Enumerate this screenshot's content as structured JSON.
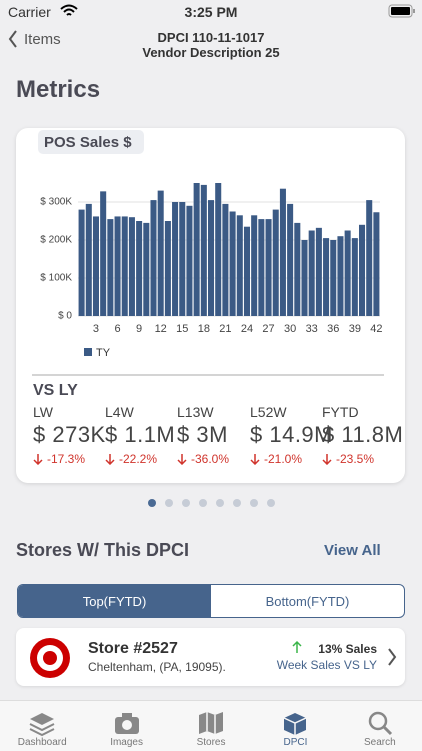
{
  "status": {
    "carrier": "Carrier",
    "time": "3:25 PM"
  },
  "nav": {
    "back": "Items",
    "title": "DPCI 110-11-1017",
    "subtitle": "Vendor Description 25"
  },
  "heading": "Metrics",
  "chart_data": {
    "type": "bar",
    "title": "POS Sales $",
    "x": [
      1,
      2,
      3,
      4,
      5,
      6,
      7,
      8,
      9,
      10,
      11,
      12,
      13,
      14,
      15,
      16,
      17,
      18,
      19,
      20,
      21,
      22,
      23,
      24,
      25,
      26,
      27,
      28,
      29,
      30,
      31,
      32,
      33,
      34,
      35,
      36,
      37,
      38,
      39,
      40,
      41,
      42
    ],
    "series": [
      {
        "name": "TY",
        "color": "#3b5a85",
        "values": [
          280000,
          295000,
          262000,
          328000,
          255000,
          262000,
          262000,
          260000,
          250000,
          245000,
          305000,
          330000,
          250000,
          300000,
          300000,
          290000,
          350000,
          345000,
          305000,
          350000,
          295000,
          275000,
          265000,
          235000,
          265000,
          255000,
          255000,
          280000,
          335000,
          295000,
          245000,
          200000,
          225000,
          232000,
          205000,
          200000,
          210000,
          225000,
          205000,
          240000,
          305000,
          273000
        ]
      }
    ],
    "xlim": [
      0.5,
      42.5
    ],
    "xticks": [
      3,
      6,
      9,
      12,
      15,
      18,
      21,
      24,
      27,
      30,
      33,
      36,
      39,
      42
    ],
    "ylim": [
      0,
      400000
    ],
    "yticks": [
      {
        "value": 0,
        "label": "$ 0"
      },
      {
        "value": 100000,
        "label": "$ 100K"
      },
      {
        "value": 200000,
        "label": "$ 200K"
      },
      {
        "value": 300000,
        "label": "$ 300K"
      }
    ],
    "grid": true,
    "legend": "bottom-left"
  },
  "vs": {
    "title": "VS LY",
    "metrics": [
      {
        "label": "LW",
        "value": "$ 273K",
        "change": "-17.3%"
      },
      {
        "label": "L4W",
        "value": "$ 1.1M",
        "change": "-22.2%"
      },
      {
        "label": "L13W",
        "value": "$ 3M",
        "change": "-36.0%"
      },
      {
        "label": "L52W",
        "value": "$ 14.9M",
        "change": "-21.0%"
      },
      {
        "label": "FYTD",
        "value": "$ 11.8M",
        "change": "-23.5%"
      }
    ]
  },
  "stores": {
    "title": "Stores W/ This DPCI",
    "view_all": "View All",
    "tabs": [
      "Top(FYTD)",
      "Bottom(FYTD)"
    ],
    "store": {
      "name": "Store #2527",
      "location": "Cheltenham, (PA, 19095).",
      "sales": "13% Sales",
      "sub": "Week Sales VS LY"
    }
  },
  "tabbar": [
    "Dashboard",
    "Images",
    "Stores",
    "DPCI",
    "Search"
  ]
}
